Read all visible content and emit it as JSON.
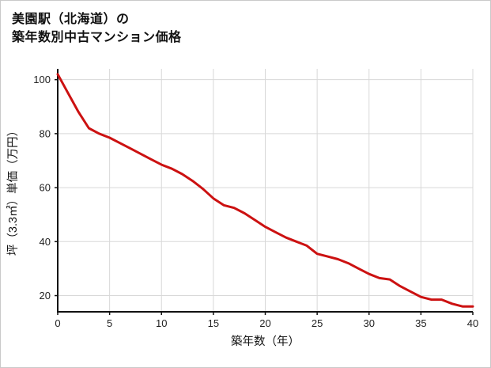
{
  "title": {
    "line1": "美園駅（北海道）の",
    "line2": "築年数別中古マンション価格"
  },
  "chart_data": {
    "type": "line",
    "title": "美園駅（北海道）の築年数別中古マンション価格",
    "xlabel": "築年数（年）",
    "ylabel": "坪（3.3㎡）単価（万円）",
    "x": [
      0,
      1,
      2,
      3,
      4,
      5,
      6,
      7,
      8,
      9,
      10,
      11,
      12,
      13,
      14,
      15,
      16,
      17,
      18,
      19,
      20,
      21,
      22,
      23,
      24,
      25,
      26,
      27,
      28,
      29,
      30,
      31,
      32,
      33,
      34,
      35,
      36,
      37,
      38,
      39,
      40
    ],
    "values": [
      102,
      95,
      88,
      82,
      80,
      78.5,
      76.5,
      74.5,
      72.5,
      70.5,
      68.5,
      67,
      65,
      62.5,
      59.5,
      56,
      53.5,
      52.5,
      50.5,
      48,
      45.5,
      43.5,
      41.5,
      40,
      38.5,
      35.5,
      34.5,
      33.5,
      32,
      30,
      28,
      26.5,
      26,
      23.5,
      21.5,
      19.5,
      18.5,
      18.5,
      17,
      16,
      16
    ],
    "xticks": [
      0,
      5,
      10,
      15,
      20,
      25,
      30,
      35,
      40
    ],
    "yticks": [
      20,
      40,
      60,
      80,
      100
    ],
    "xlim": [
      0,
      40
    ],
    "ylim": [
      14,
      104
    ],
    "grid": true,
    "legend": "none",
    "colors": {
      "line": "#cc1111",
      "axis": "#111111",
      "grid": "#d8d8d8",
      "tick_text": "#222222",
      "label_text": "#111111"
    }
  }
}
